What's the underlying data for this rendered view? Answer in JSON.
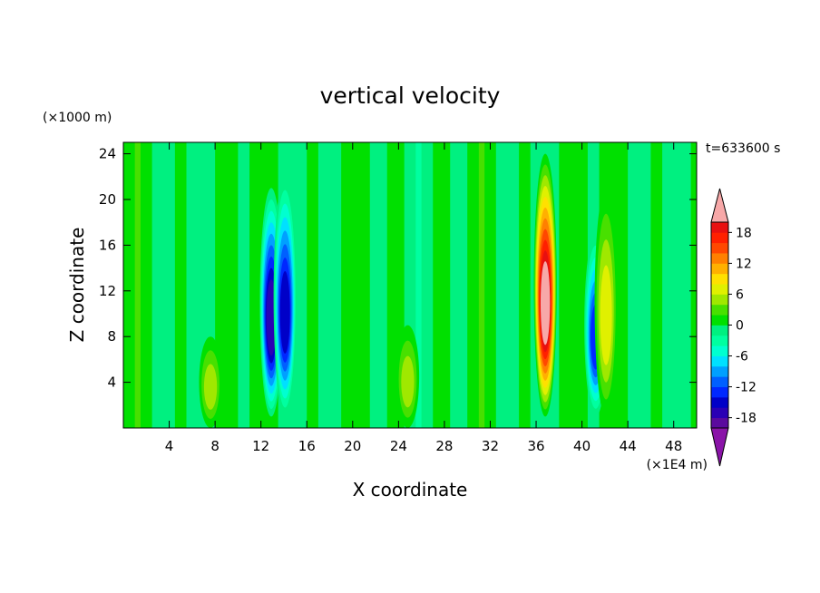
{
  "chart_data": {
    "type": "heatmap",
    "title": "vertical velocity",
    "xlabel": "X coordinate",
    "ylabel": "Z coordinate",
    "x_unit": "(×1E4 m)",
    "y_unit": "(×1000 m)",
    "time_label": "t=633600 s",
    "xlim": [
      0,
      50
    ],
    "ylim": [
      0,
      25
    ],
    "x_ticks": [
      "4",
      "8",
      "12",
      "16",
      "20",
      "24",
      "28",
      "32",
      "36",
      "40",
      "44",
      "48"
    ],
    "y_ticks": [
      "4",
      "8",
      "12",
      "16",
      "20",
      "24"
    ],
    "colorbar": {
      "levels": [
        -20,
        -18,
        -16,
        -14,
        -12,
        -10,
        -8,
        -6,
        -4,
        -2,
        0,
        2,
        4,
        6,
        8,
        10,
        12,
        14,
        16,
        18,
        20
      ],
      "colors": [
        "#5b0a9e",
        "#2a00b5",
        "#0000c8",
        "#0028ff",
        "#0060ff",
        "#00a0ff",
        "#00e0ff",
        "#00ffd0",
        "#00ffa0",
        "#00f080",
        "#00e000",
        "#48e000",
        "#a0e800",
        "#e0f000",
        "#ffe000",
        "#ffb000",
        "#ff8000",
        "#ff4800",
        "#ff2000",
        "#e81010"
      ],
      "under_color": "#8a14a8",
      "over_color": "#f7a8a8",
      "labels": [
        "-18",
        "-12",
        "-6",
        "0",
        "6",
        "12",
        "18"
      ],
      "label_values": [
        -18,
        -12,
        -6,
        0,
        6,
        12,
        18
      ]
    },
    "features": [
      {
        "kind": "downdraft",
        "x": 12.9,
        "z_bottom": 1,
        "z_top": 21,
        "min": -17
      },
      {
        "kind": "downdraft",
        "x": 14.1,
        "z_bottom": 1,
        "z_top": 22,
        "min": -16
      },
      {
        "kind": "updraft",
        "x": 36.8,
        "z_bottom": 1,
        "z_top": 24,
        "max": 21
      },
      {
        "kind": "downdraft",
        "x": 41.2,
        "z_bottom": 1,
        "z_top": 17,
        "min": -14
      },
      {
        "kind": "updraft",
        "x": 42.1,
        "z_bottom": 1,
        "z_top": 21,
        "max": 8
      },
      {
        "kind": "updraft",
        "x": 7.6,
        "z_bottom": 0,
        "z_top": 8,
        "max": 5
      },
      {
        "kind": "updraft",
        "x": 24.8,
        "z_bottom": 0,
        "z_top": 9,
        "max": 5
      }
    ]
  }
}
